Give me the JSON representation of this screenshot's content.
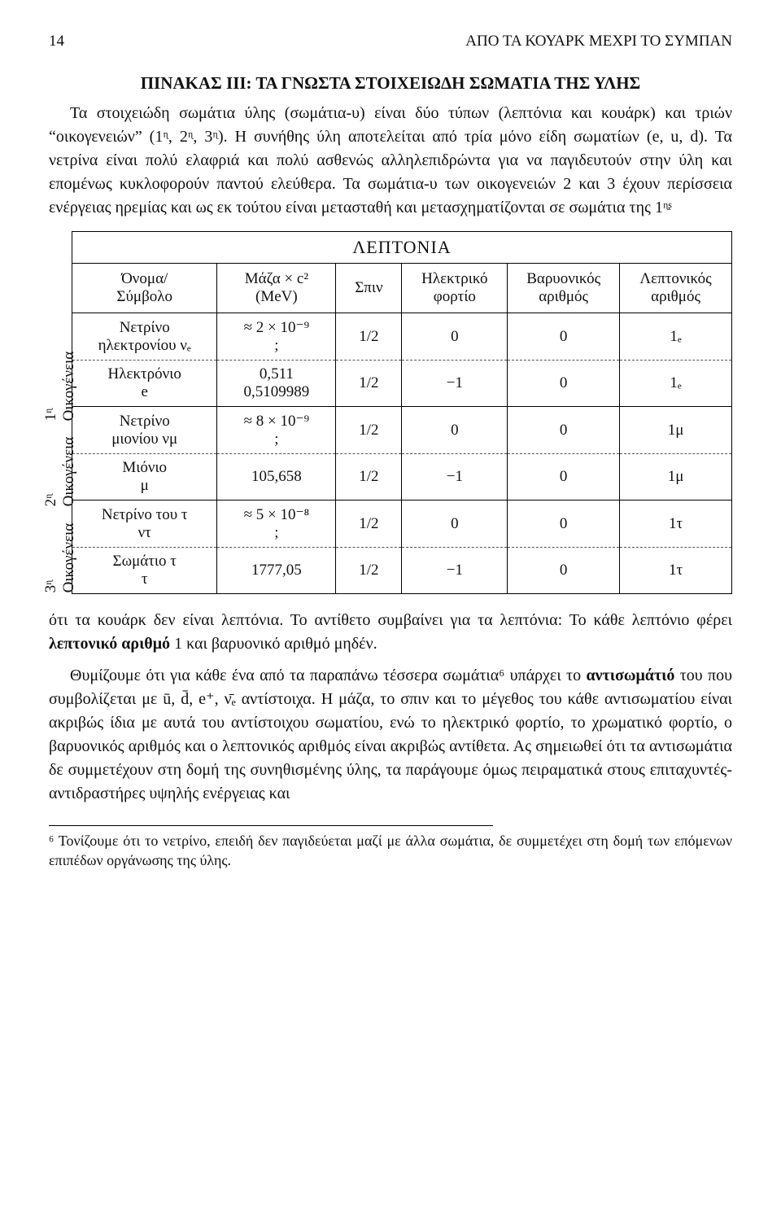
{
  "header": {
    "page_number": "14",
    "running_head": "ΑΠΟ ΤΑ ΚΟΥΑΡΚ ΜΕΧΡΙ ΤΟ ΣΥΜΠΑΝ"
  },
  "title": "ΠΙΝΑΚΑΣ ΙΙΙ: ΤΑ ΓΝΩΣΤΑ ΣΤΟΙΧΕΙΩΔΗ ΣΩΜΑΤΙΑ ΤΗΣ ΥΛΗΣ",
  "intro": "Τα στοιχειώδη σωμάτια ύλης (σωμάτια-υ) είναι δύο τύπων (λεπτόνια και κουάρκ) και τριών “οικογενειών” (1ᶯ, 2ᶯ, 3ᶯ). Η συνήθης ύλη αποτελείται από τρία μόνο είδη σωματίων (e, u, d). Τα νετρίνα είναι πολύ ελαφριά και πολύ ασθενώς αλληλεπιδρώντα για να παγιδευτούν στην ύλη και επομένως κυκλοφορούν παντού ελεύθερα. Τα σωμάτια-υ των οικογενειών 2 και 3 έχουν περίσσεια ενέργειας ηρεμίας και ως εκ τούτου είναι μετασταθή και μετασχηματίζονται σε σωμάτια της 1ᶯᶳ",
  "table": {
    "section_title": "ΛΕΠΤΟΝΙΑ",
    "headers": {
      "name": "Όνομα/\nΣύμβολο",
      "mass_label": "Μάζα × c²\n(MeV)",
      "spin": "Σπιν",
      "charge": "Ηλεκτρικό\nφορτίο",
      "baryon": "Βαρυονικός\nαριθμός",
      "lepton": "Λεπτονικός\nαριθμός"
    },
    "families": [
      {
        "side_label": "1ᶯ Οικογένεια",
        "rows": [
          {
            "name": "Νετρίνο\nηλεκτρονίου νₑ",
            "mass": "≈ 2 × 10⁻⁹\n;",
            "spin": "1/2",
            "charge": "0",
            "baryon": "0",
            "lepton": "1ₑ"
          },
          {
            "name": "Ηλεκτρόνιο\ne",
            "mass": "0,511\n0,5109989",
            "spin": "1/2",
            "charge": "−1",
            "baryon": "0",
            "lepton": "1ₑ"
          }
        ]
      },
      {
        "side_label": "2ᶯ Οικογένεια",
        "rows": [
          {
            "name": "Νετρίνο\nμιονίου νμ",
            "mass": "≈ 8 × 10⁻⁹\n;",
            "spin": "1/2",
            "charge": "0",
            "baryon": "0",
            "lepton": "1μ"
          },
          {
            "name": "Μιόνιο\nμ",
            "mass": "105,658",
            "spin": "1/2",
            "charge": "−1",
            "baryon": "0",
            "lepton": "1μ"
          }
        ]
      },
      {
        "side_label": "3ᶯ Οικογένεια",
        "rows": [
          {
            "name": "Νετρίνο του τ\nντ",
            "mass": "≈ 5 × 10⁻⁸\n;",
            "spin": "1/2",
            "charge": "0",
            "baryon": "0",
            "lepton": "1τ"
          },
          {
            "name": "Σωμάτιο τ\nτ",
            "mass": "1777,05",
            "spin": "1/2",
            "charge": "−1",
            "baryon": "0",
            "lepton": "1τ"
          }
        ]
      }
    ]
  },
  "after_table": {
    "p1": "ότι τα κουάρκ δεν είναι λεπτόνια. Το αντίθετο συμβαίνει για τα λεπτόνια: Το κάθε λεπτόνιο φέρει λεπτονικό αριθμό 1 και βαρυονικό αριθμό μηδέν.",
    "p2": "Θυμίζουμε ότι για κάθε ένα από τα παραπάνω τέσσερα σωμάτια⁶ υπάρχει το αντισωμάτιό του που συμβολίζεται με ū, d̄, e⁺, ν̄ₑ αντίστοιχα. Η μάζα, το σπιν και το μέγεθος του κάθε αντισωματίου είναι ακριβώς ίδια με αυτά του αντίστοιχου σωματίου, ενώ το ηλεκτρικό φορτίο, το χρωματικό φορτίο, ο βαρυονικός αριθμός και ο λεπτονικός αριθμός είναι ακριβώς αντίθετα. Ας σημειωθεί ότι τα αντισωμάτια δε συμμετέχουν στη δομή της συνηθισμένης ύλης, τα παράγουμε όμως πειραματικά στους επιταχυντές-αντιδραστήρες υψηλής ενέργειας και"
  },
  "footnote": "⁶ Τονίζουμε ότι το νετρίνο, επειδή δεν παγιδεύεται μαζί με άλλα σωμάτια, δε συμμετέχει στη δομή των επόμενων επιπέδων οργάνωσης της ύλης."
}
